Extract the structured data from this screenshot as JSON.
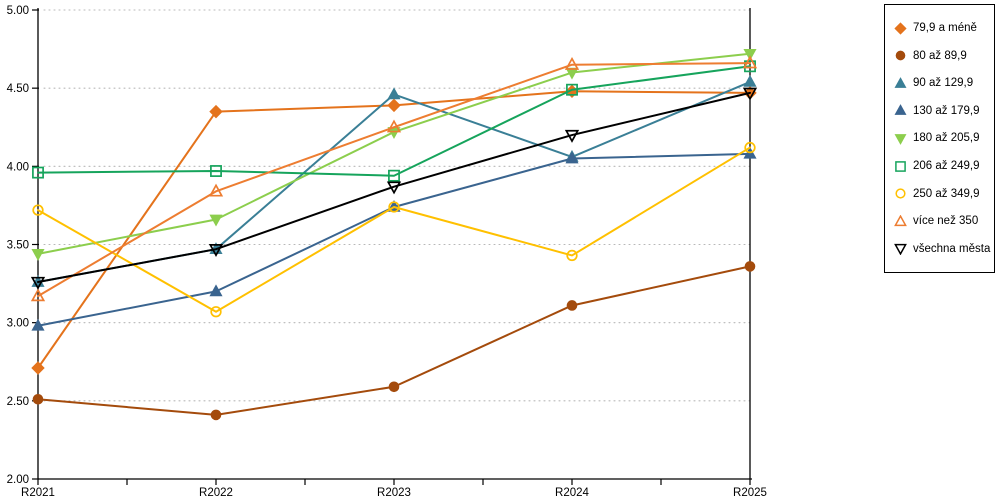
{
  "chart_data": {
    "type": "line",
    "title": "",
    "categories": [
      "R2021",
      "R2022",
      "R2023",
      "R2024",
      "R2025"
    ],
    "series": [
      {
        "name": "79,9 a méně",
        "marker": "diamond",
        "fill": "solid",
        "color": "#E4731C",
        "values": [
          2.71,
          4.35,
          4.39,
          4.48,
          4.47
        ]
      },
      {
        "name": "80 až 89,9",
        "marker": "circle",
        "fill": "solid",
        "color": "#A44B0C",
        "values": [
          2.51,
          2.41,
          2.59,
          3.11,
          3.36
        ]
      },
      {
        "name": "90 až 129,9",
        "marker": "triangle-up",
        "fill": "solid",
        "color": "#3A7F96",
        "values": [
          3.26,
          3.47,
          4.46,
          4.06,
          4.54
        ]
      },
      {
        "name": "130 až 179,9",
        "marker": "triangle-up",
        "fill": "solid",
        "color": "#3A648F",
        "values": [
          2.98,
          3.2,
          3.74,
          4.05,
          4.08
        ]
      },
      {
        "name": "180 až 205,9",
        "marker": "triangle-down",
        "fill": "solid",
        "color": "#8CCE4D",
        "values": [
          3.44,
          3.66,
          4.22,
          4.6,
          4.72
        ]
      },
      {
        "name": "206 až 249,9",
        "marker": "square",
        "fill": "open",
        "color": "#16A45C",
        "values": [
          3.96,
          3.97,
          3.94,
          4.49,
          4.64
        ]
      },
      {
        "name": "250 až 349,9",
        "marker": "circle",
        "fill": "open",
        "color": "#FFC000",
        "values": [
          3.72,
          3.07,
          3.74,
          3.43,
          4.12
        ]
      },
      {
        "name": "více než 350",
        "marker": "triangle-up",
        "fill": "open",
        "color": "#ED7D31",
        "values": [
          3.17,
          3.84,
          4.25,
          4.65,
          4.66
        ]
      },
      {
        "name": "všechna města",
        "marker": "triangle-down",
        "fill": "open",
        "color": "#000000",
        "values": [
          3.26,
          3.47,
          3.87,
          4.2,
          4.47
        ]
      }
    ],
    "ylim": [
      2.0,
      5.0
    ],
    "ytick_step": 0.5,
    "ytick_labels": [
      "5.00",
      "4.50",
      "4.00",
      "3.50",
      "3.00",
      "2.50",
      "2.00"
    ],
    "xlabel": "",
    "ylabel": "",
    "grid": "horizontal-dotted",
    "legend_position": "right"
  }
}
